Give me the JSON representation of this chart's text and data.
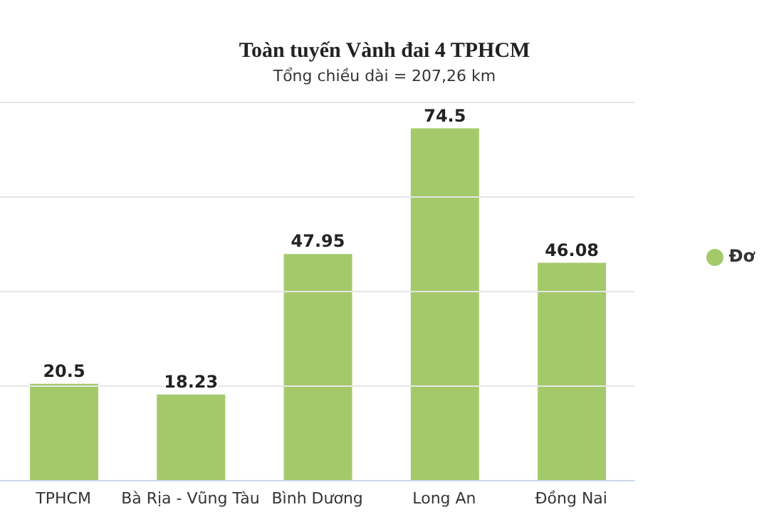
{
  "chart_data": {
    "type": "bar",
    "title": "Toàn tuyến Vành đai 4 TPHCM",
    "subtitle": "Tổng chiều dài = 207,26 km",
    "categories": [
      "TPHCM",
      "Bà Rịa - Vũng Tàu",
      "Bình Dương",
      "Long An",
      "Đồng Nai"
    ],
    "series": [
      {
        "name": "Đơ",
        "color": "#a4c96b",
        "values": [
          20.5,
          18.23,
          47.95,
          74.5,
          46.08
        ]
      }
    ],
    "ylim": [
      0,
      80
    ],
    "yticks": [
      {
        "value": 0,
        "label": null
      },
      {
        "value": 20,
        "label": null
      },
      {
        "value": 40,
        "label": null
      },
      {
        "value": 60,
        "label": null
      },
      {
        "value": 80,
        "label": null
      }
    ],
    "tick_labels": "x",
    "grid": "y",
    "legend": "right",
    "data_labels": true
  }
}
